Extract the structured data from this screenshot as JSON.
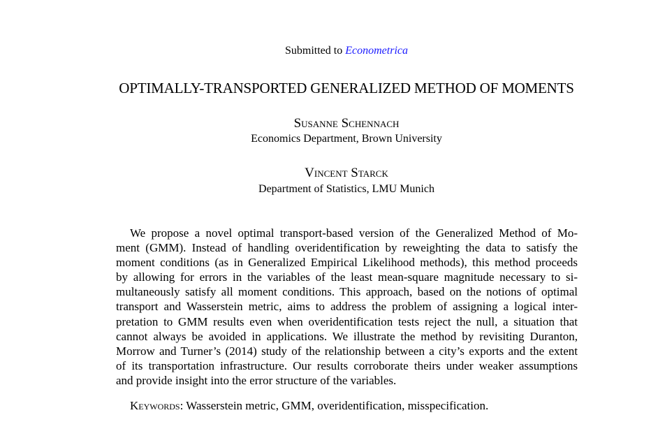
{
  "header": {
    "submitted_prefix": "Submitted to",
    "journal": "Econometrica",
    "journal_color": "#1a1aff"
  },
  "title": "OPTIMALLY-TRANSPORTED GENERALIZED METHOD OF MOMENTS",
  "authors": [
    {
      "name": "Susanne Schennach",
      "affiliation": "Economics Department, Brown University"
    },
    {
      "name": "Vincent Starck",
      "affiliation": "Department of Statistics, LMU Munich"
    }
  ],
  "abstract": {
    "lines": [
      "We propose a novel optimal transport-based version of the Generalized Method of Mo-",
      "ment (GMM). Instead of handling overidentification by reweighting the data to satisfy the",
      "moment conditions (as in Generalized Empirical Likelihood methods), this method proceeds",
      "by allowing for errors in the variables of the least mean-square magnitude necessary to si-",
      "multaneously satisfy all moment conditions. This approach, based on the notions of optimal",
      "transport and Wasserstein metric, aims to address the problem of assigning a logical inter-",
      "pretation to GMM results even when overidentification tests reject the null, a situation that",
      "cannot always be avoided in applications. We illustrate the method by revisiting Duranton,",
      "Morrow and Turner’s (2014) study of the relationship between a city’s exports and the extent",
      "of its transportation infrastructure. Our results corroborate theirs under weaker assumptions",
      "and provide insight into the error structure of the variables."
    ]
  },
  "keywords": {
    "label": "Keywords",
    "text": "Wasserstein metric, GMM, overidentification, misspecification."
  }
}
